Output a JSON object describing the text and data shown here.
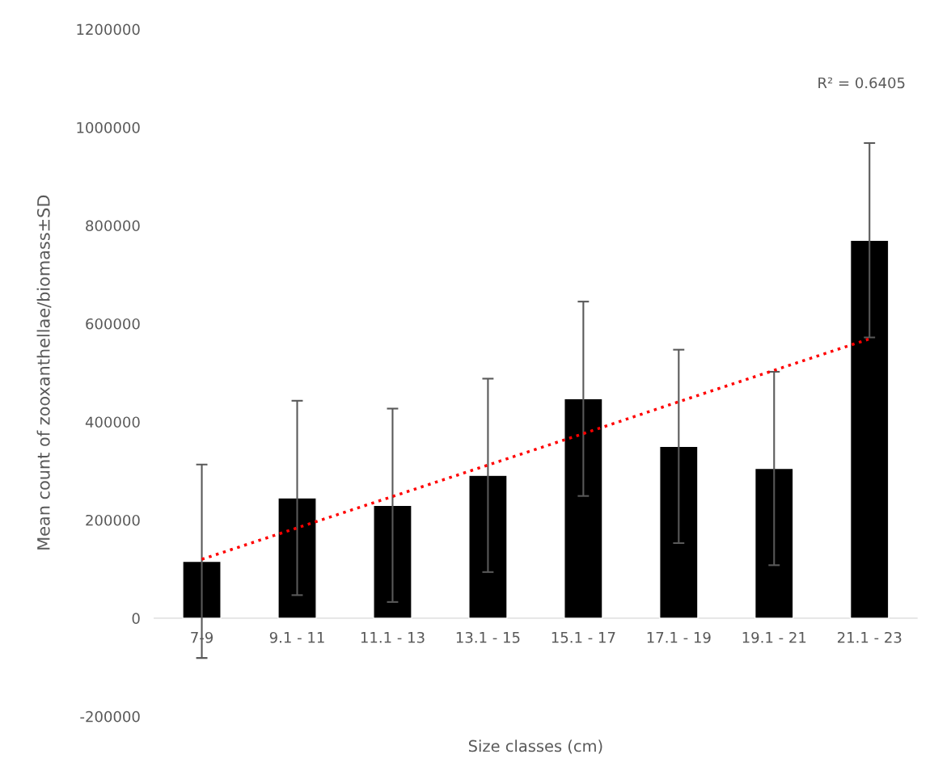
{
  "chart_data": {
    "type": "bar",
    "xlabel": "Size classes (cm)",
    "ylabel": "Mean count of zooxanthellae/biomass±SD",
    "categories": [
      "7-9",
      "9.1 - 11",
      "11.1 - 13",
      "13.1 - 15",
      "15.1 - 17",
      "17.1 - 19",
      "19.1 - 21",
      "21.1 - 23"
    ],
    "series": [
      {
        "color": "#000000",
        "values": [
          116000,
          245000,
          230000,
          291000,
          447000,
          350000,
          305000,
          770000
        ],
        "errors": [
          197000,
          198000,
          197000,
          197000,
          198000,
          197000,
          197000,
          198000
        ]
      },
      {
        "type": "line",
        "color": "#ff0000",
        "line_style": "dotted",
        "marker": "none",
        "values": [
          120000,
          184000,
          248000,
          312000,
          376000,
          441000,
          505000,
          569000
        ]
      }
    ],
    "annotations": [
      "R² = 0.6405"
    ],
    "ylim": [
      -200000,
      1200000
    ],
    "yticks": [
      -200000,
      0,
      200000,
      400000,
      600000,
      800000,
      1000000,
      1200000
    ],
    "grid": false,
    "legend": false
  }
}
